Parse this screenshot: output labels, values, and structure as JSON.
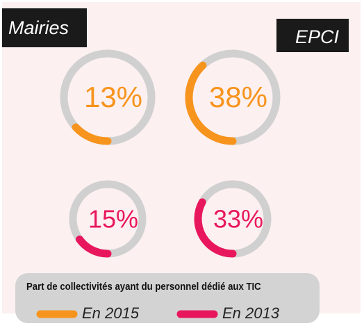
{
  "header": {
    "left": "Mairies",
    "right": "EPCI"
  },
  "chart_data": [
    {
      "type": "donut",
      "values": [
        13
      ],
      "value_labels": [
        "13%"
      ],
      "color": "#f7941d"
    },
    {
      "type": "donut",
      "values": [
        38
      ],
      "value_labels": [
        "38%"
      ],
      "color": "#f7941d"
    },
    {
      "type": "donut",
      "values": [
        15
      ],
      "value_labels": [
        "15%"
      ],
      "color": "#e8175d"
    },
    {
      "type": "donut",
      "values": [
        33
      ],
      "value_labels": [
        "33%"
      ],
      "color": "#e8175d"
    }
  ],
  "legend": {
    "title": "Part de collectivités ayant du personnel dédié aux TIC",
    "items": [
      {
        "name": "En 2015",
        "color": "#f7941d"
      },
      {
        "name": "En 2013",
        "color": "#e8175d"
      }
    ]
  }
}
